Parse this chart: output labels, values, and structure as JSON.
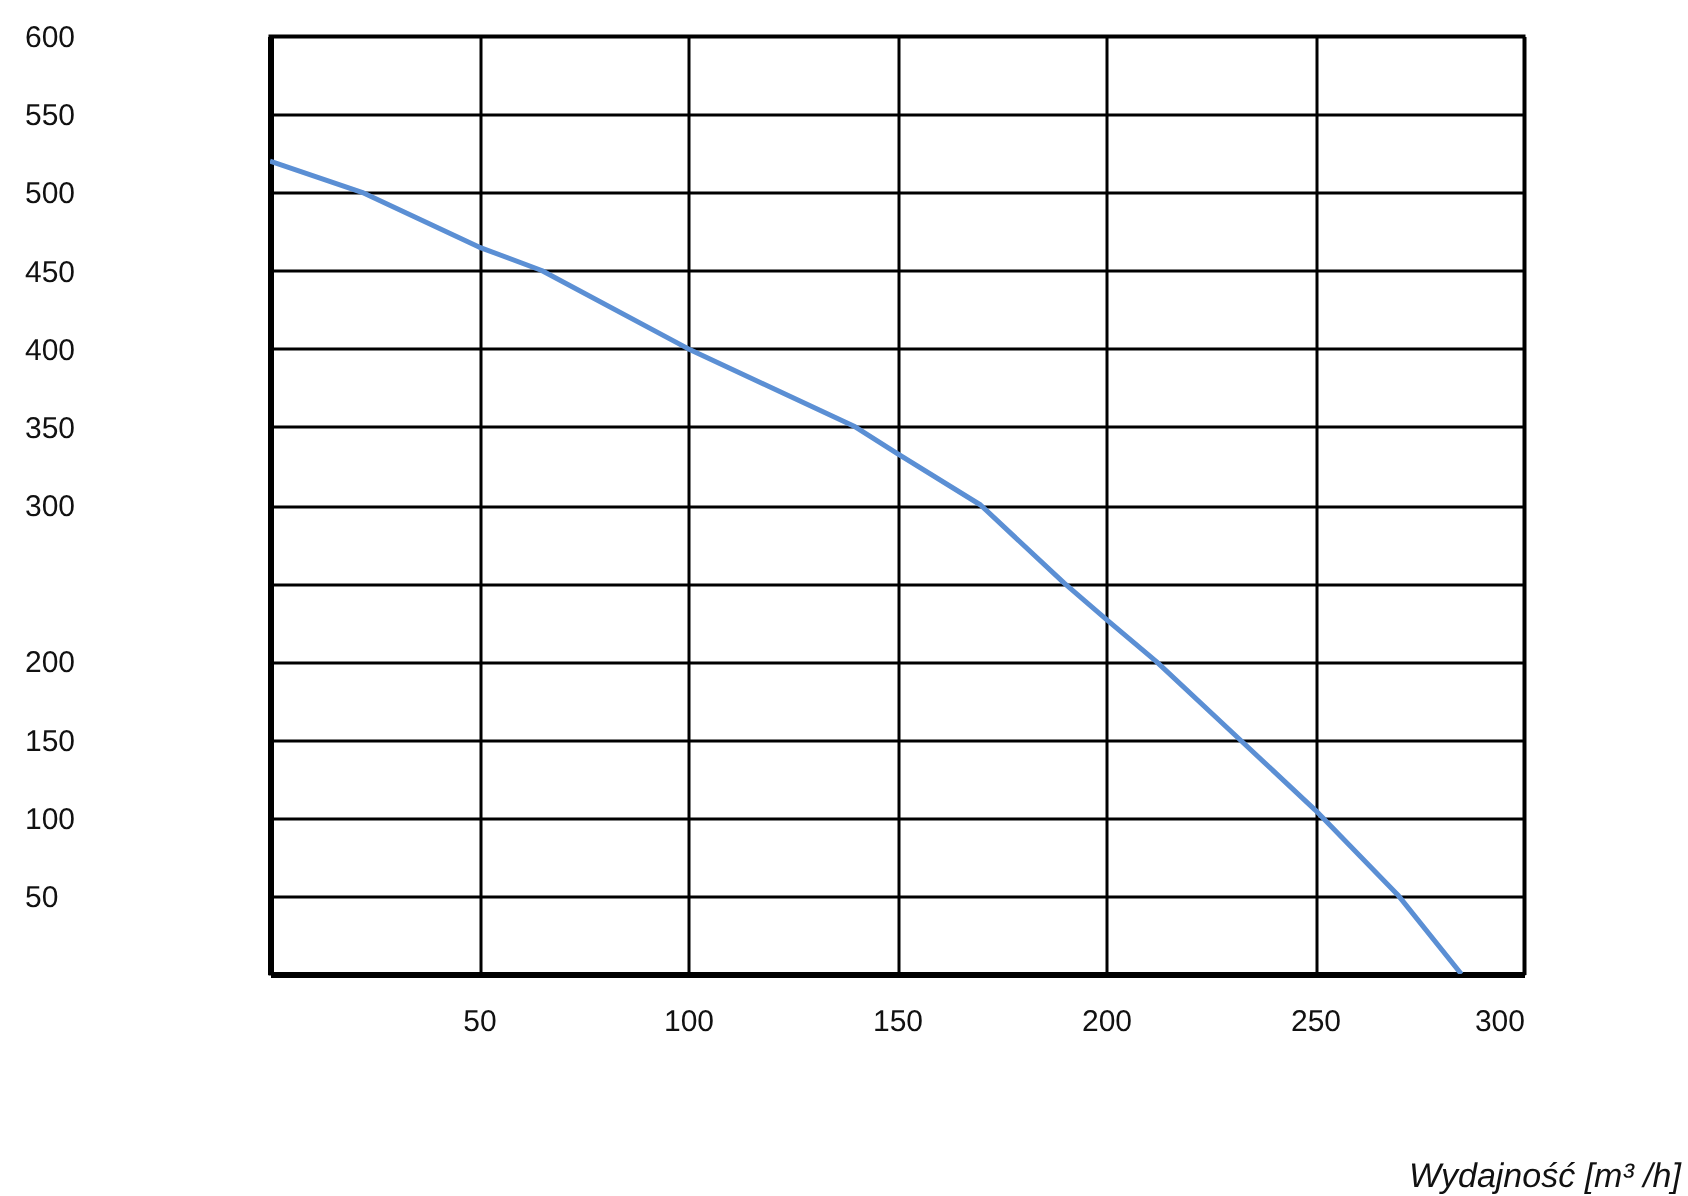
{
  "chart_data": {
    "type": "line",
    "xlabel": "Wydajność [m³ /h]",
    "x": [
      0,
      22,
      50,
      65,
      100,
      140,
      150,
      170,
      190,
      200,
      212,
      232,
      250,
      270,
      285
    ],
    "series": [
      {
        "color": "#5b8fd4",
        "values": [
          520,
          500,
          465,
          450,
          400,
          350,
          333,
          300,
          250,
          227,
          200,
          150,
          105,
          50,
          0
        ]
      }
    ],
    "xlim": [
      0,
      300
    ],
    "xticks": [
      50,
      100,
      150,
      200,
      250,
      300
    ],
    "ylim": [
      0,
      600
    ],
    "yticks": [
      {
        "value": 0,
        "label": null
      },
      50,
      100,
      150,
      200,
      {
        "value": 250,
        "label": null
      },
      300,
      350,
      400,
      450,
      500,
      550,
      600
    ],
    "grid": true,
    "marker": "none",
    "line_style": "solid"
  }
}
